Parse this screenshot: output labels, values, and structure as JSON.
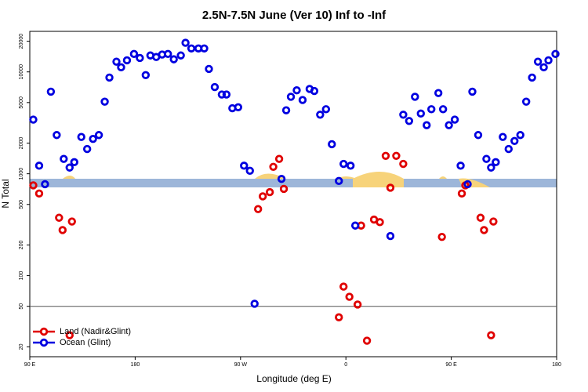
{
  "chart_data": {
    "type": "scatter",
    "title": "2.5N-7.5N June (Ver 10)   Inf to -Inf",
    "x_label": "Longitude (deg E)",
    "y_label": "N Total",
    "xlim": [
      90,
      540
    ],
    "xticks": [
      {
        "value": 90,
        "label": "90 E"
      },
      180,
      {
        "value": 270,
        "label": "90 W"
      },
      {
        "value": 360,
        "label": "0"
      },
      {
        "value": 450,
        "label": "90 E"
      },
      {
        "value": 540,
        "label": "180"
      }
    ],
    "ylim": [
      16,
      25000
    ],
    "ylog": true,
    "yticks": [
      20,
      50,
      100,
      200,
      500,
      1000,
      2000,
      5000,
      10000,
      20000
    ],
    "reference_line": 50,
    "legend": "bottom-left",
    "series": [
      {
        "name": "Land (Nadir&Glint)",
        "color": "#e00000",
        "x": [
          93,
          98,
          115,
          118,
          124,
          126,
          285,
          289,
          295,
          298,
          303,
          307,
          354,
          358,
          363,
          370,
          373,
          378,
          384,
          389,
          394,
          398,
          403,
          409,
          442,
          459,
          462,
          475,
          478,
          484,
          486
        ],
        "values": [
          770,
          640,
          370,
          280,
          26,
          340,
          450,
          600,
          660,
          1170,
          1400,
          710,
          39,
          78,
          62,
          52,
          310,
          23,
          355,
          335,
          1500,
          730,
          1500,
          1250,
          240,
          640,
          770,
          370,
          280,
          26,
          340
        ]
      },
      {
        "name": "Ocean (Glint)",
        "color": "#0000e0",
        "x": [
          93,
          98,
          103,
          108,
          113,
          119,
          124,
          128,
          134,
          139,
          144,
          149,
          154,
          158,
          164,
          168,
          173,
          179,
          184,
          189,
          193,
          198,
          203,
          208,
          213,
          219,
          223,
          228,
          234,
          239,
          243,
          248,
          254,
          258,
          263,
          268,
          273,
          278,
          282,
          305,
          309,
          313,
          318,
          323,
          329,
          333,
          338,
          343,
          348,
          354,
          358,
          364,
          368,
          398,
          409,
          414,
          419,
          424,
          429,
          433,
          439,
          443,
          448,
          453,
          458,
          464,
          468,
          473,
          480,
          484,
          488,
          494,
          499,
          504,
          509,
          514,
          519,
          524,
          529,
          533,
          539
        ],
        "values": [
          3400,
          1200,
          790,
          6400,
          2400,
          1400,
          1150,
          1300,
          2300,
          1750,
          2200,
          2400,
          5100,
          8800,
          12600,
          11100,
          13000,
          15000,
          13700,
          9300,
          14500,
          14000,
          14800,
          15000,
          13300,
          14500,
          19300,
          17000,
          17000,
          17000,
          10700,
          7100,
          6000,
          6000,
          4400,
          4500,
          1200,
          1070,
          53,
          890,
          4200,
          5700,
          6600,
          5300,
          6800,
          6500,
          3800,
          4300,
          1950,
          850,
          1250,
          1200,
          310,
          245,
          3800,
          3300,
          5700,
          3900,
          3000,
          4300,
          6200,
          4300,
          3000,
          3400,
          1200,
          790,
          6400,
          2400,
          1400,
          1150,
          1300,
          2300,
          1750,
          2100,
          2400,
          5100,
          8800,
          12600,
          11100,
          13000,
          15000
        ]
      }
    ]
  }
}
